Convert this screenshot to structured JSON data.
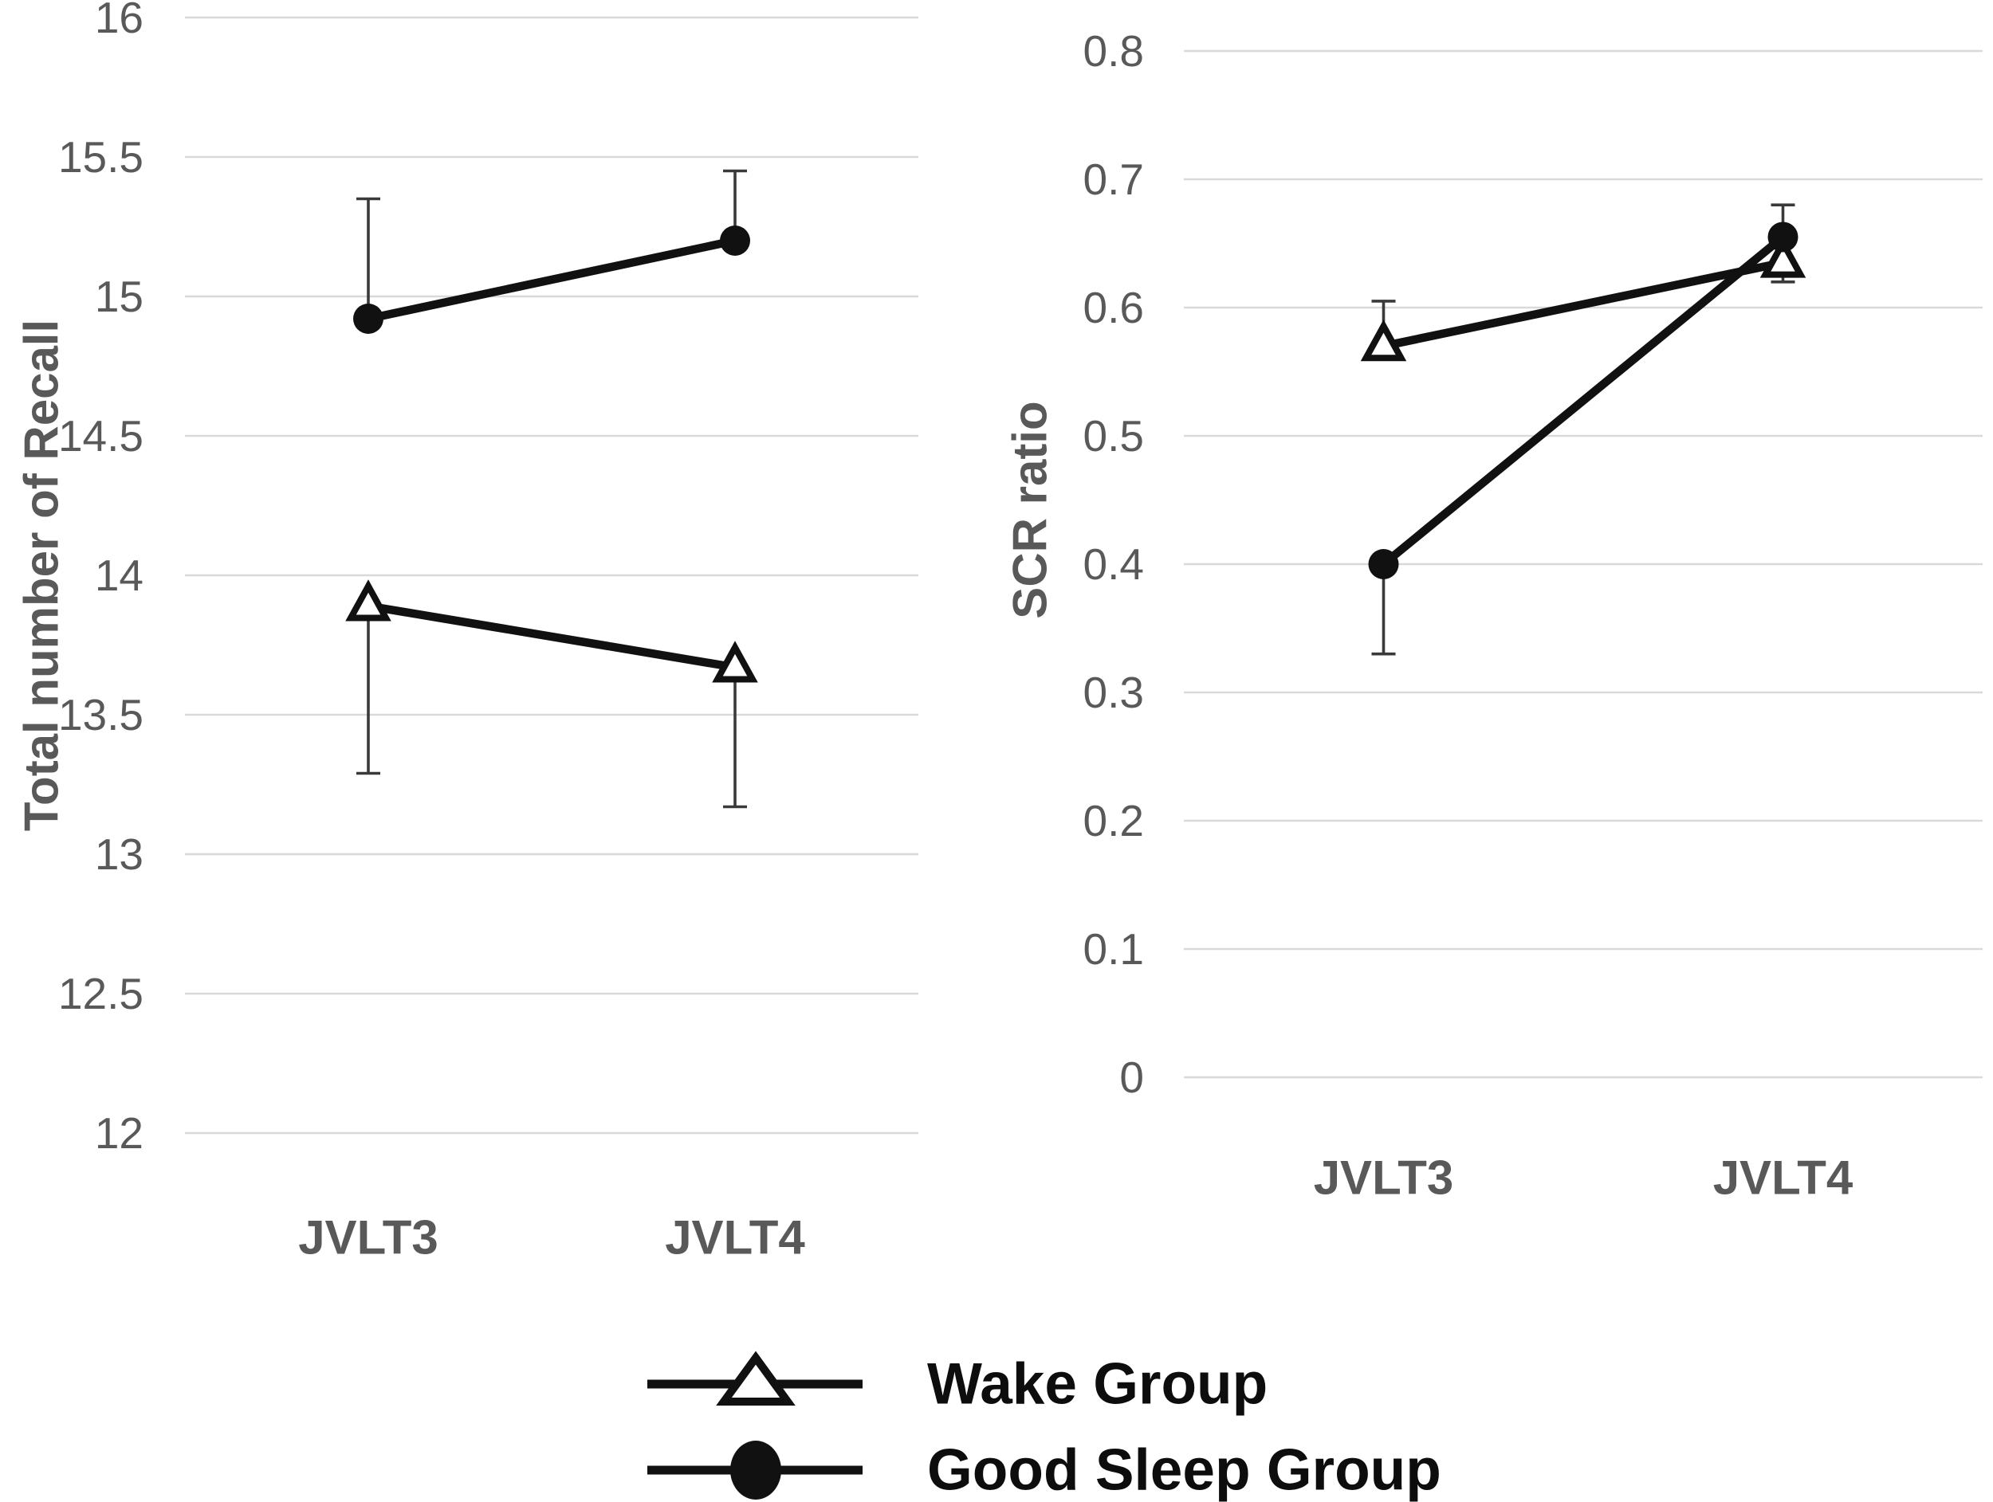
{
  "figure": {
    "background": "#ffffff"
  },
  "colors": {
    "series_black": "#111111",
    "axis_text": "#595959",
    "gridline": "#d9d9d9",
    "error_bar": "#3a3a3a",
    "legend_text": "#0d0d0d",
    "marker_fill_open": "#ffffff"
  },
  "legend": {
    "items": [
      {
        "label": "Wake Group",
        "marker": "triangle-open"
      },
      {
        "label": "Good Sleep Group",
        "marker": "circle-filled"
      }
    ]
  },
  "chart_data": [
    {
      "type": "line",
      "title": "",
      "xlabel": "",
      "ylabel": "Total number of Recall",
      "categories": [
        "JVLT3",
        "JVLT4"
      ],
      "ylim": [
        12,
        16
      ],
      "ytick_step": 0.5,
      "ytick_labels": [
        "16",
        "15.5",
        "15",
        "14.5",
        "14",
        "13.5",
        "13",
        "12.5",
        "12"
      ],
      "grid": true,
      "legend_position": "bottom-shared",
      "series": [
        {
          "name": "Wake Group",
          "marker": "triangle-open",
          "values": [
            13.89,
            13.67
          ],
          "error_high": [
            null,
            null
          ],
          "error_low": [
            13.29,
            13.17
          ]
        },
        {
          "name": "Good Sleep Group",
          "marker": "circle-filled",
          "values": [
            14.92,
            15.2
          ],
          "error_high": [
            15.35,
            15.45
          ],
          "error_low": [
            null,
            null
          ]
        }
      ]
    },
    {
      "type": "line",
      "title": "",
      "xlabel": "",
      "ylabel": "SCR ratio",
      "categories": [
        "JVLT3",
        "JVLT4"
      ],
      "ylim": [
        0,
        0.8
      ],
      "ytick_step": 0.1,
      "ytick_labels": [
        "0.8",
        "0.7",
        "0.6",
        "0.5",
        "0.4",
        "0.3",
        "0.2",
        "0.1",
        "0"
      ],
      "grid": true,
      "legend_position": "bottom-shared",
      "series": [
        {
          "name": "Wake Group",
          "marker": "triangle-open",
          "values": [
            0.57,
            0.635
          ],
          "error_high": [
            0.605,
            null
          ],
          "error_low": [
            null,
            0.62
          ]
        },
        {
          "name": "Good Sleep Group",
          "marker": "circle-filled",
          "values": [
            0.4,
            0.655
          ],
          "error_high": [
            null,
            0.68
          ],
          "error_low": [
            0.33,
            null
          ]
        }
      ]
    }
  ]
}
